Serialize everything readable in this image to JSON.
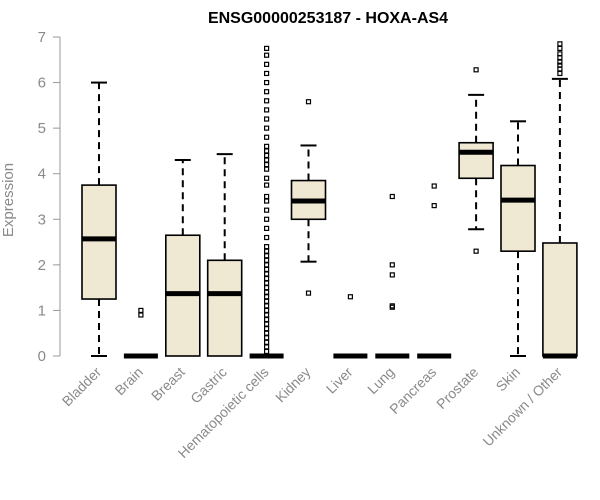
{
  "chart_data": {
    "type": "box",
    "title": "ENSG00000253187 - HOXA-AS4",
    "xlabel": "",
    "ylabel": "Expression",
    "ylim": [
      0,
      7
    ],
    "yticks": [
      0,
      1,
      2,
      3,
      4,
      5,
      6,
      7
    ],
    "grid": false,
    "box_color": "#efe8d2",
    "categories": [
      "Bladder",
      "Brain",
      "Breast",
      "Gastric",
      "Hematopoietic cells",
      "Kidney",
      "Liver",
      "Lung",
      "Pancreas",
      "Prostate",
      "Skin",
      "Unknown / Other"
    ],
    "boxes": [
      {
        "min": 0,
        "q1": 1.25,
        "median": 2.57,
        "q3": 3.75,
        "max": 6.0,
        "outliers": []
      },
      {
        "min": 0,
        "q1": 0,
        "median": 0,
        "q3": 0,
        "max": 0,
        "outliers": [
          0.9,
          1.0
        ]
      },
      {
        "min": 0,
        "q1": 0,
        "median": 1.37,
        "q3": 2.65,
        "max": 4.3,
        "outliers": []
      },
      {
        "min": 0,
        "q1": 0,
        "median": 1.37,
        "q3": 2.1,
        "max": 4.43,
        "outliers": []
      },
      {
        "min": 0,
        "q1": 0,
        "median": 0,
        "q3": 0,
        "max": 0,
        "outliers": [
          0.1,
          0.2,
          0.3,
          0.4,
          0.5,
          0.6,
          0.7,
          0.8,
          0.9,
          1.0,
          1.1,
          1.2,
          1.3,
          1.4,
          1.5,
          1.6,
          1.7,
          1.8,
          1.9,
          2.0,
          2.1,
          2.2,
          2.3,
          2.4,
          2.6,
          2.8,
          3.0,
          3.2,
          3.4,
          3.5,
          3.75,
          3.9,
          4.1,
          4.2,
          4.3,
          4.4,
          4.5,
          4.6,
          4.8,
          5.0,
          5.2,
          5.4,
          5.6,
          5.8,
          6.0,
          6.2,
          6.4,
          6.6,
          6.75
        ]
      },
      {
        "min": 2.07,
        "q1": 3.0,
        "median": 3.4,
        "q3": 3.85,
        "max": 4.62,
        "outliers": [
          1.38,
          5.58
        ]
      },
      {
        "min": 0,
        "q1": 0,
        "median": 0,
        "q3": 0,
        "max": 0,
        "outliers": [
          1.3
        ]
      },
      {
        "min": 0,
        "q1": 0,
        "median": 0,
        "q3": 0,
        "max": 0,
        "outliers": [
          1.07,
          1.1,
          1.78,
          2.0,
          3.5
        ]
      },
      {
        "min": 0,
        "q1": 0,
        "median": 0,
        "q3": 0,
        "max": 0,
        "outliers": [
          3.3,
          3.73
        ]
      },
      {
        "min": 2.78,
        "q1": 3.9,
        "median": 4.47,
        "q3": 4.68,
        "max": 5.73,
        "outliers": [
          2.3,
          6.28
        ]
      },
      {
        "min": 0,
        "q1": 2.3,
        "median": 3.42,
        "q3": 4.18,
        "max": 5.15,
        "outliers": []
      },
      {
        "min": 0,
        "q1": 0,
        "median": 0,
        "q3": 2.48,
        "max": 6.08,
        "outliers": [
          6.2,
          6.3,
          6.38,
          6.45,
          6.55,
          6.63,
          6.75,
          6.85
        ]
      }
    ]
  }
}
